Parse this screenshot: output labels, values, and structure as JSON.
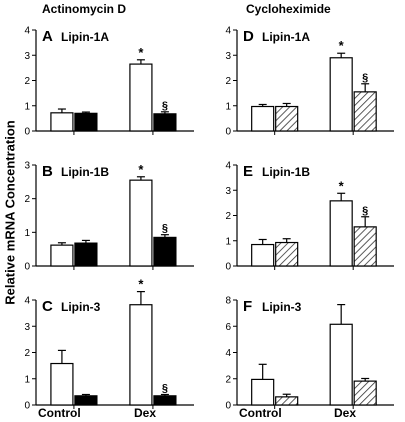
{
  "figure": {
    "column_titles": [
      "Actinomycin D",
      "Cycloheximide"
    ],
    "ylabel": "Relative mRNA Concentration",
    "xcategories": [
      "Control",
      "Dex"
    ]
  },
  "chart_data": [
    {
      "type": "bar",
      "panel": "A",
      "title": "Lipin-1A",
      "treatment": "Actinomycin D",
      "categories": [
        "Control",
        "Dex"
      ],
      "ylim": [
        0,
        4
      ],
      "yticks": [
        0,
        1,
        2,
        3,
        4
      ],
      "series": [
        {
          "values": [
            0.72,
            2.65
          ],
          "errors": [
            0.15,
            0.17
          ],
          "fill": "white"
        },
        {
          "values": [
            0.7,
            0.68
          ],
          "errors": [
            0.05,
            0.08
          ],
          "fill": "black"
        }
      ],
      "annotations": [
        {
          "category": "Dex",
          "series": 0,
          "text": "*"
        },
        {
          "category": "Dex",
          "series": 1,
          "text": "§"
        }
      ]
    },
    {
      "type": "bar",
      "panel": "B",
      "title": "Lipin-1B",
      "treatment": "Actinomycin D",
      "categories": [
        "Control",
        "Dex"
      ],
      "ylim": [
        0,
        3
      ],
      "yticks": [
        0,
        1,
        2,
        3
      ],
      "series": [
        {
          "values": [
            0.62,
            2.55
          ],
          "errors": [
            0.07,
            0.1
          ],
          "fill": "white"
        },
        {
          "values": [
            0.68,
            0.85
          ],
          "errors": [
            0.08,
            0.08
          ],
          "fill": "black"
        }
      ],
      "annotations": [
        {
          "category": "Dex",
          "series": 0,
          "text": "*"
        },
        {
          "category": "Dex",
          "series": 1,
          "text": "§"
        }
      ]
    },
    {
      "type": "bar",
      "panel": "C",
      "title": "Lipin-3",
      "treatment": "Actinomycin D",
      "categories": [
        "Control",
        "Dex"
      ],
      "ylim": [
        0,
        4
      ],
      "yticks": [
        0,
        1,
        2,
        3,
        4
      ],
      "series": [
        {
          "values": [
            1.58,
            3.82
          ],
          "errors": [
            0.5,
            0.5
          ],
          "fill": "white"
        },
        {
          "values": [
            0.35,
            0.35
          ],
          "errors": [
            0.05,
            0.05
          ],
          "fill": "black"
        }
      ],
      "annotations": [
        {
          "category": "Dex",
          "series": 0,
          "text": "*"
        },
        {
          "category": "Dex",
          "series": 1,
          "text": "§"
        }
      ]
    },
    {
      "type": "bar",
      "panel": "D",
      "title": "Lipin-1A",
      "treatment": "Cycloheximide",
      "categories": [
        "Control",
        "Dex"
      ],
      "ylim": [
        0,
        4
      ],
      "yticks": [
        0,
        1,
        2,
        3,
        4
      ],
      "series": [
        {
          "values": [
            0.97,
            2.9
          ],
          "errors": [
            0.08,
            0.18
          ],
          "fill": "white"
        },
        {
          "values": [
            0.97,
            1.55
          ],
          "errors": [
            0.12,
            0.32
          ],
          "fill": "hatched"
        }
      ],
      "annotations": [
        {
          "category": "Dex",
          "series": 0,
          "text": "*"
        },
        {
          "category": "Dex",
          "series": 1,
          "text": "§"
        }
      ]
    },
    {
      "type": "bar",
      "panel": "E",
      "title": "Lipin-1B",
      "treatment": "Cycloheximide",
      "categories": [
        "Control",
        "Dex"
      ],
      "ylim": [
        0,
        4
      ],
      "yticks": [
        0,
        1,
        2,
        3,
        4
      ],
      "series": [
        {
          "values": [
            0.85,
            2.58
          ],
          "errors": [
            0.2,
            0.3
          ],
          "fill": "white"
        },
        {
          "values": [
            0.93,
            1.55
          ],
          "errors": [
            0.15,
            0.4
          ],
          "fill": "hatched"
        }
      ],
      "annotations": [
        {
          "category": "Dex",
          "series": 0,
          "text": "*"
        },
        {
          "category": "Dex",
          "series": 1,
          "text": "§"
        }
      ]
    },
    {
      "type": "bar",
      "panel": "F",
      "title": "Lipin-3",
      "treatment": "Cycloheximide",
      "categories": [
        "Control",
        "Dex"
      ],
      "ylim": [
        0,
        8
      ],
      "yticks": [
        0,
        2,
        4,
        6,
        8
      ],
      "series": [
        {
          "values": [
            1.95,
            6.15
          ],
          "errors": [
            1.15,
            1.5
          ],
          "fill": "white"
        },
        {
          "values": [
            0.62,
            1.82
          ],
          "errors": [
            0.2,
            0.2
          ],
          "fill": "hatched"
        }
      ],
      "annotations": []
    }
  ]
}
